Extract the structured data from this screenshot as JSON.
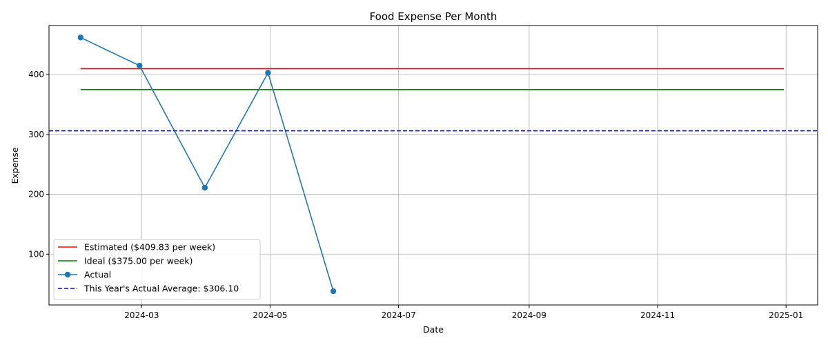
{
  "chart_data": {
    "type": "line",
    "title": "Food Expense Per Month",
    "xlabel": "Date",
    "ylabel": "Expense",
    "x_axis_type": "date",
    "xlim": [
      "2024-01-17",
      "2025-01-16"
    ],
    "ylim": [
      15,
      482
    ],
    "x_ticks": [
      {
        "date": "2024-03-01",
        "label": "2024-03"
      },
      {
        "date": "2024-05-01",
        "label": "2024-05"
      },
      {
        "date": "2024-07-01",
        "label": "2024-07"
      },
      {
        "date": "2024-09-01",
        "label": "2024-09"
      },
      {
        "date": "2024-11-01",
        "label": "2024-11"
      },
      {
        "date": "2025-01-01",
        "label": "2025-01"
      }
    ],
    "y_ticks": [
      100,
      200,
      300,
      400
    ],
    "grid": true,
    "legend_position": "lower-left",
    "series": [
      {
        "name": "Estimated ($409.83 per week)",
        "style": "solid",
        "color": "#ff0000",
        "marker": false,
        "points": [
          {
            "x": "2024-02-01",
            "y": 409.83
          },
          {
            "x": "2024-12-31",
            "y": 409.83
          }
        ]
      },
      {
        "name": "Ideal ($375.00 per week)",
        "style": "solid",
        "color": "#008000",
        "marker": false,
        "points": [
          {
            "x": "2024-02-01",
            "y": 375.0
          },
          {
            "x": "2024-12-31",
            "y": 375.0
          }
        ]
      },
      {
        "name": "Actual",
        "style": "solid",
        "color": "#1f77b4",
        "marker": true,
        "points": [
          {
            "x": "2024-02-01",
            "y": 462
          },
          {
            "x": "2024-02-29",
            "y": 415
          },
          {
            "x": "2024-03-31",
            "y": 211
          },
          {
            "x": "2024-04-30",
            "y": 403
          },
          {
            "x": "2024-05-31",
            "y": 38
          }
        ]
      },
      {
        "name": "This Year's Actual Average: $306.10",
        "style": "dashed",
        "color": "#0000ff",
        "marker": false,
        "horizontal_full_width": true,
        "y": 306.1
      }
    ]
  }
}
